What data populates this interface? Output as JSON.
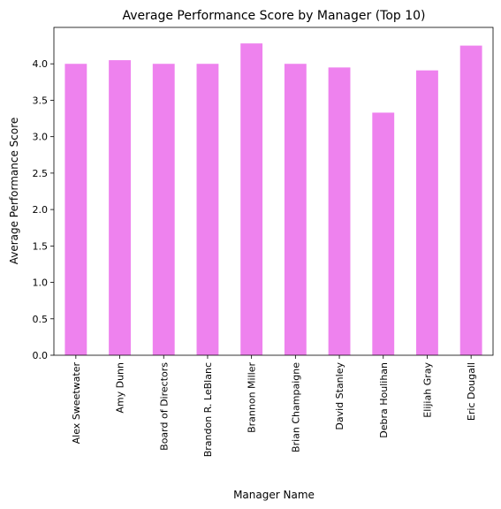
{
  "chart_data": {
    "type": "bar",
    "title": "Average Performance Score by Manager (Top 10)",
    "xlabel": "Manager Name",
    "ylabel": "Average Performance Score",
    "categories": [
      "Alex Sweetwater",
      "Amy Dunn",
      "Board of Directors",
      "Brandon R. LeBlanc",
      "Brannon Miller",
      "Brian Champaigne",
      "David Stanley",
      "Debra Houlihan",
      "Elijiah Gray",
      "Eric Dougall"
    ],
    "values": [
      4.0,
      4.05,
      4.0,
      4.0,
      4.28,
      4.0,
      3.95,
      3.33,
      3.91,
      4.25
    ],
    "ylim": [
      0,
      4.5
    ],
    "yticks": [
      "0.0",
      "0.5",
      "1.0",
      "1.5",
      "2.0",
      "2.5",
      "3.0",
      "3.5",
      "4.0"
    ],
    "bar_color": "#ee82ee",
    "grid": false,
    "legend": false
  }
}
